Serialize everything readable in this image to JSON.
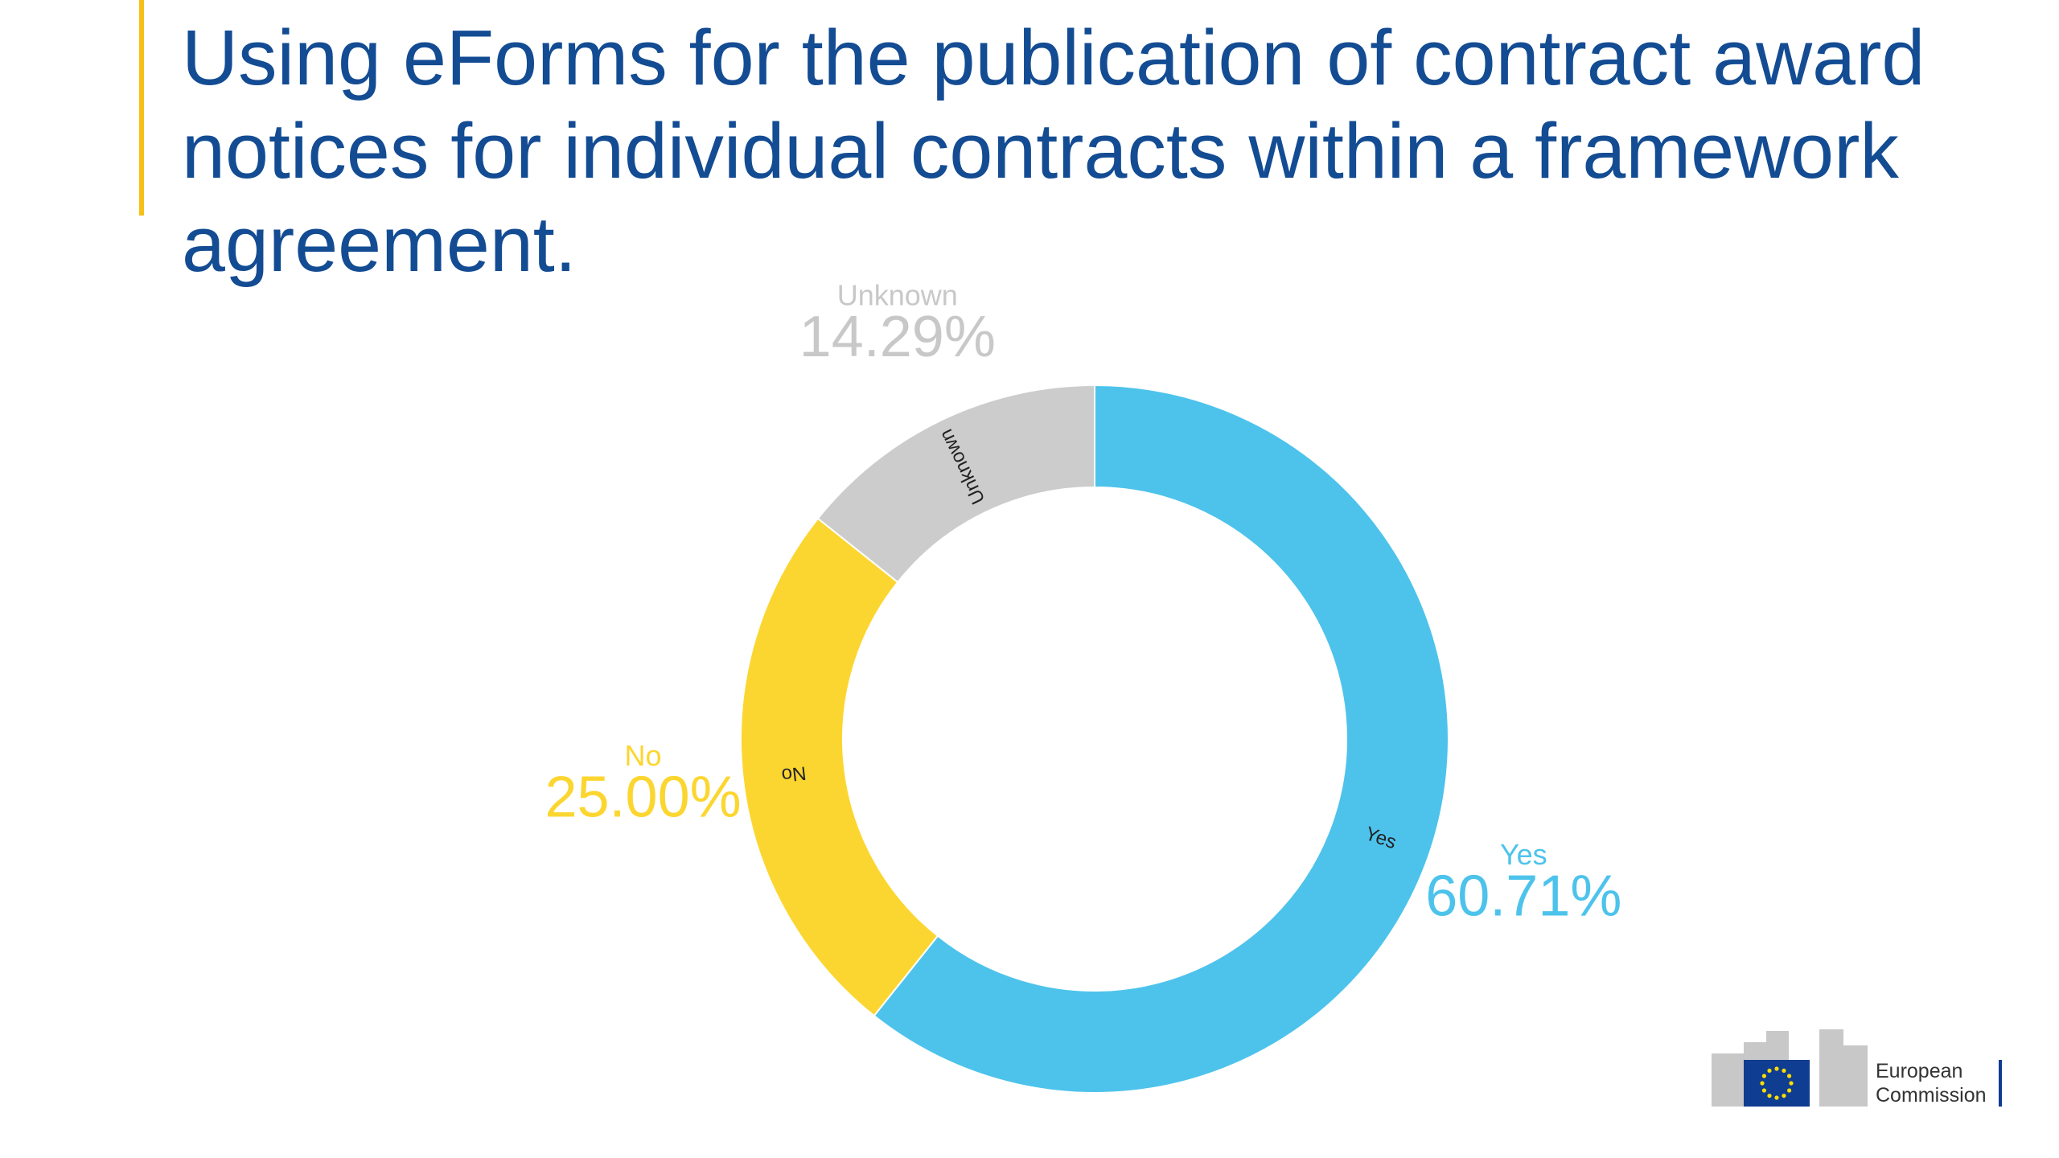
{
  "chart_data": {
    "type": "pie",
    "title": "Using eForms for the publication of contract award notices for individual contracts within a framework agreement.",
    "categories": [
      "Yes",
      "No",
      "Unknown"
    ],
    "values": [
      60.71,
      25.0,
      14.29
    ],
    "value_labels": [
      "60.71%",
      "25.00%",
      "14.29%"
    ],
    "colors": [
      "#4dc3ec",
      "#fcd630",
      "#cccccc"
    ],
    "label_colors": [
      "#4dc3ec",
      "#fcd630",
      "#c8c8c8"
    ],
    "donut": true
  },
  "logo": {
    "lines": [
      "European",
      "Commission"
    ]
  }
}
